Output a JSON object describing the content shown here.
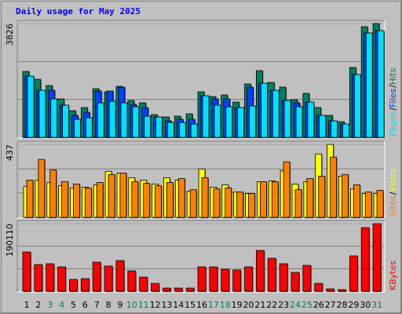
{
  "chart_data": [
    {
      "type": "bar",
      "title": "Daily usage for May 2025",
      "legend": "right",
      "legend_separator": "/",
      "ylim": [
        0,
        3826
      ],
      "yticks": [
        3826
      ],
      "grid_values": [
        1275,
        2551
      ],
      "series": [
        {
          "name": "Hits",
          "color": "#008060",
          "values": [
            2216,
            1953,
            1741,
            1293,
            897,
            1003,
            1636,
            1530,
            1715,
            1240,
            1161,
            765,
            686,
            712,
            792,
            1530,
            1372,
            1425,
            1187,
            1794,
            2243,
            1847,
            1689,
            1267,
            1478,
            1003,
            739,
            528,
            2348,
            3720,
            3826
          ]
        },
        {
          "name": "Files",
          "color": "#0040ff",
          "values": [
            2058,
            1583,
            1583,
            1082,
            739,
            844,
            1557,
            1557,
            1689,
            1108,
            1003,
            686,
            554,
            607,
            607,
            1398,
            1293,
            1293,
            1003,
            1689,
            1821,
            1583,
            1240,
            1161,
            1187,
            739,
            554,
            449,
            2111,
            3509,
            3588
          ]
        },
        {
          "name": "Pages",
          "color": "#00e0ff",
          "values": [
            2058,
            1583,
            1293,
            1082,
            607,
            660,
            1161,
            1214,
            1161,
            1029,
            712,
            686,
            501,
            501,
            449,
            1398,
            1082,
            1029,
            1003,
            1055,
            1821,
            1583,
            1240,
            1029,
            1187,
            739,
            554,
            449,
            2111,
            3509,
            3588
          ]
        }
      ]
    },
    {
      "type": "bar",
      "legend": "right",
      "legend_separator": "/",
      "ylim": [
        0,
        437
      ],
      "yticks": [
        437
      ],
      "grid_values": [
        146,
        291
      ],
      "series": [
        {
          "name": "Visits",
          "color": "#ffff00",
          "values": [
            185,
            223,
            209,
            190,
            176,
            181,
            195,
            276,
            266,
            238,
            223,
            200,
            238,
            223,
            157,
            290,
            181,
            195,
            152,
            143,
            214,
            219,
            280,
            200,
            214,
            380,
            437,
            247,
            171,
            143,
            143
          ]
        },
        {
          "name": "Sites",
          "color": "#ff8000",
          "values": [
            223,
            347,
            285,
            214,
            200,
            176,
            209,
            257,
            266,
            214,
            204,
            190,
            209,
            233,
            166,
            238,
            171,
            176,
            152,
            143,
            214,
            214,
            333,
            166,
            233,
            247,
            361,
            257,
            195,
            152,
            162
          ]
        }
      ]
    },
    {
      "type": "bar",
      "legend": "right",
      "ylim": [
        0,
        190110
      ],
      "yticks": [
        190110
      ],
      "grid_values": [
        63370,
        126740
      ],
      "categories": [
        "1",
        "2",
        "3",
        "4",
        "5",
        "6",
        "7",
        "8",
        "9",
        "10",
        "11",
        "12",
        "13",
        "14",
        "15",
        "16",
        "17",
        "18",
        "19",
        "20",
        "21",
        "22",
        "23",
        "24",
        "25",
        "26",
        "27",
        "28",
        "29",
        "30",
        "31"
      ],
      "category_colors": [
        "#000000",
        "#000000",
        "#008060",
        "#008060",
        "#000000",
        "#000000",
        "#000000",
        "#000000",
        "#000000",
        "#008060",
        "#008060",
        "#000000",
        "#000000",
        "#000000",
        "#000000",
        "#000000",
        "#008060",
        "#008060",
        "#000000",
        "#000000",
        "#000000",
        "#000000",
        "#000000",
        "#008060",
        "#008060",
        "#000000",
        "#000000",
        "#000000",
        "#000000",
        "#000000",
        "#008060"
      ],
      "series": [
        {
          "name": "KBytes",
          "color": "#ff0000",
          "values": [
            110530,
            75160,
            77370,
            68530,
            33160,
            35370,
            81790,
            70740,
            86210,
            57480,
            39790,
            22110,
            8840,
            8840,
            8840,
            68530,
            68530,
            61900,
            59690,
            68530,
            114950,
            92850,
            77370,
            53050,
            72950,
            22110,
            6630,
            4420,
            99480,
            179060,
            190110
          ]
        }
      ]
    }
  ]
}
